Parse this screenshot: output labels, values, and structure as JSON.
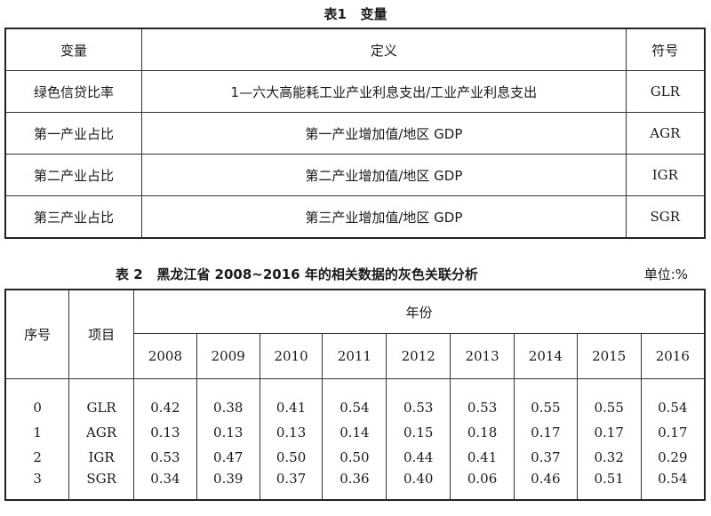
{
  "table1": {
    "caption": "表1   变量",
    "header": [
      "变量",
      "定义",
      "符号"
    ],
    "rows": [
      [
        "绿色信贷比率",
        "1—六大高能耗工业产业利息支出/工业产业利息支出",
        "GLR"
      ],
      [
        "第一产业占比",
        "第一产业增加值/地区 GDP",
        "AGR"
      ],
      [
        "第二产业占比",
        "第二产业增加值/地区 GDP",
        "IGR"
      ],
      [
        "第三产业占比",
        "第三产业增加值/地区 GDP",
        "SGR"
      ]
    ]
  },
  "table2": {
    "caption": "表 2   黑龙江省 2008~2016 年的相关数据的灰色关联分析",
    "unit": "单位:%",
    "col_index": "序号",
    "col_item": "项目",
    "col_year_group": "年份",
    "years": [
      "2008",
      "2009",
      "2010",
      "2011",
      "2012",
      "2013",
      "2014",
      "2015",
      "2016"
    ],
    "rows": [
      {
        "index": "0",
        "item": "GLR",
        "values": [
          "0.42",
          "0.38",
          "0.41",
          "0.54",
          "0.53",
          "0.53",
          "0.55",
          "0.55",
          "0.54"
        ]
      },
      {
        "index": "1",
        "item": "AGR",
        "values": [
          "0.13",
          "0.13",
          "0.13",
          "0.14",
          "0.15",
          "0.18",
          "0.17",
          "0.17",
          "0.17"
        ]
      },
      {
        "index": "2",
        "item": "IGR",
        "values": [
          "0.53",
          "0.47",
          "0.50",
          "0.50",
          "0.44",
          "0.41",
          "0.37",
          "0.32",
          "0.29"
        ]
      },
      {
        "index": "3",
        "item": "SGR",
        "values": [
          "0.34",
          "0.39",
          "0.37",
          "0.36",
          "0.40",
          "0.06",
          "0.46",
          "0.51",
          "0.54"
        ]
      }
    ]
  }
}
